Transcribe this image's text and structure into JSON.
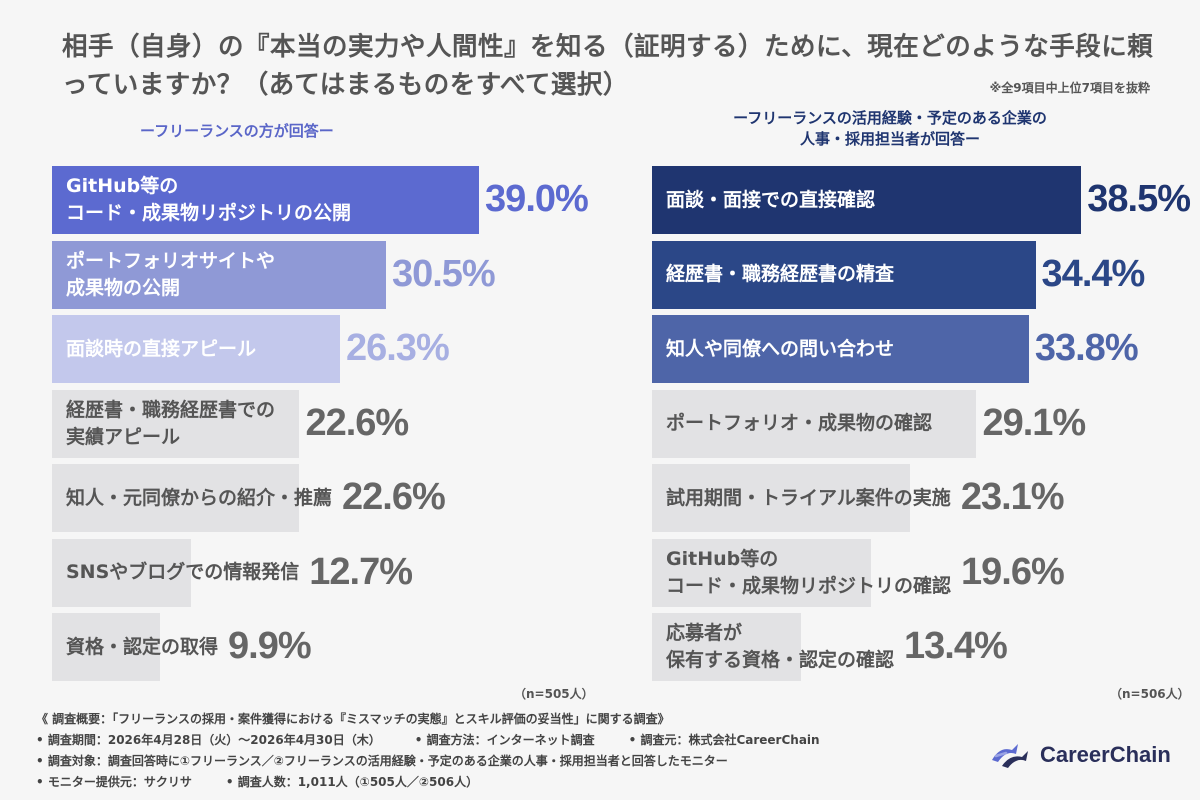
{
  "title": "相手（自身）の『本当の実力や人間性』を知る（証明する）ために、現在どのような手段に頼っていますか？（あてはまるものをすべて選択）",
  "note": "※全9項目中上位7項目を抜粋",
  "left_subtitle": "ーフリーランスの方が回答ー",
  "right_subtitle_line1": "ーフリーランスの活用経験・予定のある企業の",
  "right_subtitle_line2": "人事・採用担当者が回答ー",
  "left_n": "（n=505人）",
  "right_n": "（n=506人）",
  "footer": {
    "line1": "《 調査概要：「フリーランスの採用・案件獲得における『ミスマッチの実態』とスキル評価の妥当性」に関する調査》",
    "period": "• 調査期間：2026年4月28日（火）〜2026年4月30日（木）",
    "method": "• 調査方法：インターネット調査",
    "org": "• 調査元：株式会社CareerChain",
    "target": "• 調査対象：調査回答時に①フリーランス／②フリーランスの活用経験・予定のある企業の人事・採用担当者と回答したモニター",
    "provider": "• モニター提供元：サクリサ",
    "count": "• 調査人数：1,011人（①505人／②506人）"
  },
  "logo_text": "CareerChain",
  "logo_icon": "career-chain-logo-icon",
  "chart_data": [
    {
      "type": "bar",
      "orientation": "horizontal",
      "categories": [
        "GitHub等の\nコード・成果物リポジトリの公開",
        "ポートフォリオサイトや\n成果物の公開",
        "面談時の直接アピール",
        "経歴書・職務経歴書での\n実績アピール",
        "知人・元同僚からの紹介・推薦",
        "SNSやブログでの情報発信",
        "資格・認定の取得"
      ],
      "values": [
        39.0,
        30.5,
        26.3,
        22.6,
        22.6,
        12.7,
        9.9
      ],
      "value_labels": [
        "39.0%",
        "30.5%",
        "26.3%",
        "22.6%",
        "22.6%",
        "12.7%",
        "9.9%"
      ],
      "bar_colors": [
        "#5c6ad0",
        "#8f99d6",
        "#c3c8ec",
        "#e2e2e4",
        "#e2e2e4",
        "#e2e2e4",
        "#e2e2e4"
      ],
      "label_colors": [
        "#ffffff",
        "#ffffff",
        "#ffffff",
        "#555555",
        "#555555",
        "#555555",
        "#555555"
      ],
      "value_colors": [
        "#5c6ad0",
        "#8f99d6",
        "#a7afe2",
        "#666666",
        "#666666",
        "#666666",
        "#666666"
      ]
    },
    {
      "type": "bar",
      "orientation": "horizontal",
      "categories": [
        "面談・面接での直接確認",
        "経歴書・職務経歴書の精査",
        "知人や同僚への問い合わせ",
        "ポートフォリオ・成果物の確認",
        "試用期間・トライアル案件の実施",
        "GitHub等の\nコード・成果物リポジトリの確認",
        "応募者が\n保有する資格・認定の確認"
      ],
      "values": [
        38.5,
        34.4,
        33.8,
        29.1,
        23.1,
        19.6,
        13.4
      ],
      "value_labels": [
        "38.5%",
        "34.4%",
        "33.8%",
        "29.1%",
        "23.1%",
        "19.6%",
        "13.4%"
      ],
      "bar_colors": [
        "#1f3570",
        "#2b4787",
        "#4e65a8",
        "#e2e2e4",
        "#e2e2e4",
        "#e2e2e4",
        "#e2e2e4"
      ],
      "label_colors": [
        "#ffffff",
        "#ffffff",
        "#ffffff",
        "#555555",
        "#555555",
        "#555555",
        "#555555"
      ],
      "value_colors": [
        "#1f3570",
        "#2b4787",
        "#4e65a8",
        "#666666",
        "#666666",
        "#666666",
        "#666666"
      ]
    }
  ]
}
